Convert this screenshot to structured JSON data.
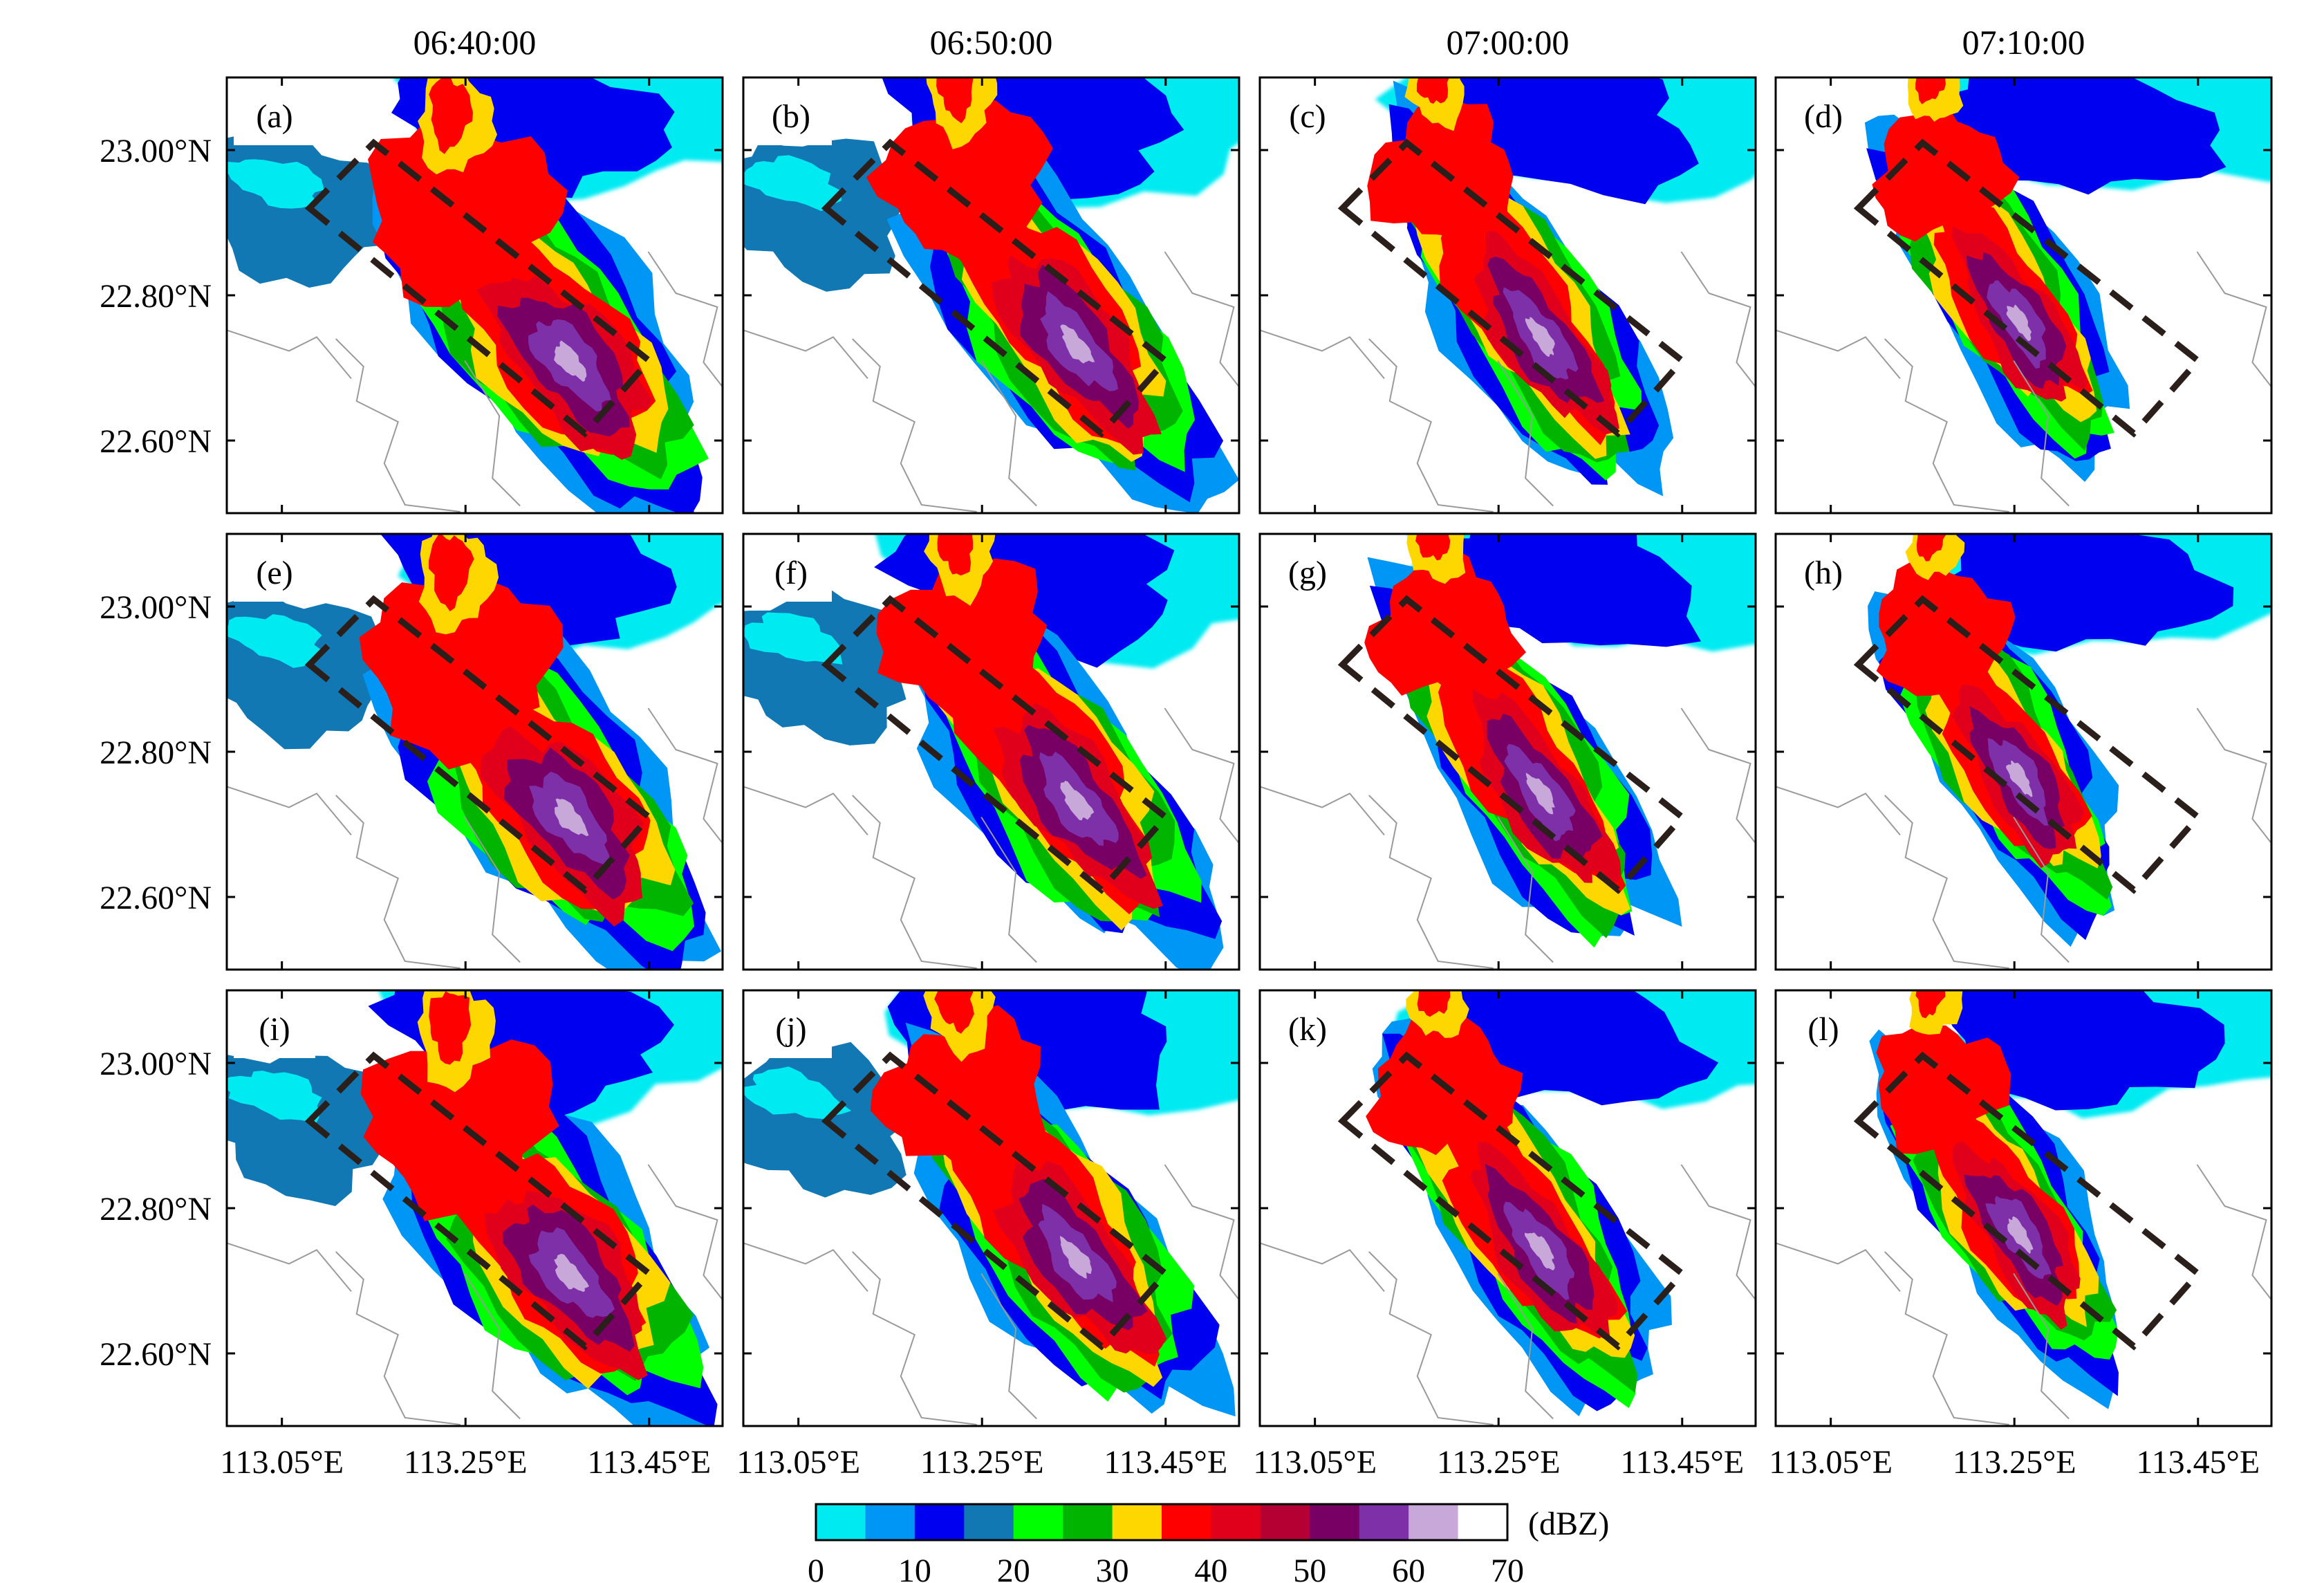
{
  "chart_data": {
    "type": "heatmap",
    "columns": [
      "06:40:00",
      "06:50:00",
      "07:00:00",
      "07:10:00"
    ],
    "rows": 3,
    "panels": [
      "(a)",
      "(b)",
      "(c)",
      "(d)",
      "(e)",
      "(f)",
      "(g)",
      "(h)",
      "(i)",
      "(j)",
      "(k)",
      "(l)"
    ],
    "x_ticks": [
      "113.05°E",
      "113.25°E",
      "113.45°E"
    ],
    "x_tick_values": [
      113.05,
      113.25,
      113.45
    ],
    "y_ticks": [
      "23.00°N",
      "22.80°N",
      "22.60°N"
    ],
    "y_tick_values": [
      23.0,
      22.8,
      22.6
    ],
    "xlim": [
      112.99,
      113.53
    ],
    "ylim": [
      22.5,
      23.1
    ],
    "colorbar": {
      "unit": "(dBZ)",
      "tick_labels": [
        "0",
        "10",
        "20",
        "30",
        "40",
        "50",
        "60",
        "70"
      ],
      "levels": [
        0,
        5,
        10,
        15,
        20,
        25,
        30,
        35,
        40,
        45,
        50,
        55,
        60,
        65,
        70
      ],
      "colors": [
        "#00eaf2",
        "#0096f5",
        "#0000f0",
        "#1278b4",
        "#00ff00",
        "#00b400",
        "#ffd700",
        "#ff0000",
        "#e0001c",
        "#b40032",
        "#780064",
        "#7d30a8",
        "#c8a8d8",
        "#ffffff"
      ]
    },
    "dashed_box_color": "#2a1f1a",
    "grid": false
  }
}
